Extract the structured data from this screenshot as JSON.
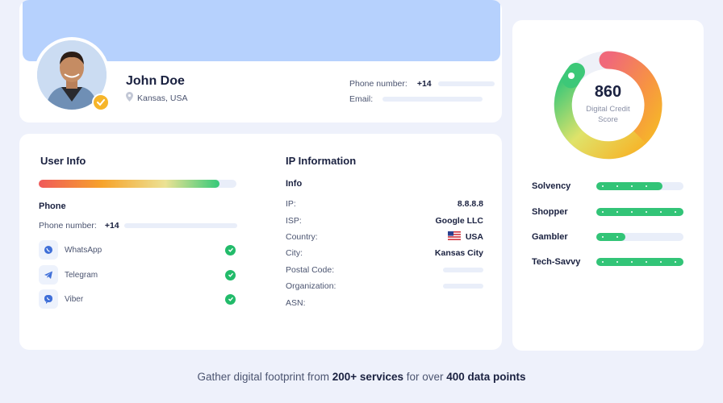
{
  "profile": {
    "name": "John Doe",
    "location": "Kansas, USA",
    "phone_label": "Phone number:",
    "phone_value": "+14",
    "email_label": "Email:"
  },
  "user_info": {
    "title": "User Info",
    "phone_title": "Phone",
    "phone_label": "Phone number:",
    "phone_value": "+14",
    "messengers": [
      {
        "name": "WhatsApp",
        "icon": "whatsapp-icon",
        "status": "check-icon"
      },
      {
        "name": "Telegram",
        "icon": "telegram-icon",
        "status": "check-icon"
      },
      {
        "name": "Viber",
        "icon": "viber-icon",
        "status": "check-icon"
      }
    ]
  },
  "ip_info": {
    "title": "IP Information",
    "subtitle": "Info",
    "rows": [
      {
        "label": "IP:",
        "value": "8.8.8.8"
      },
      {
        "label": "ISP:",
        "value": "Google LLC"
      },
      {
        "label": "Country:",
        "value": "USA",
        "icon": "us-flag-icon"
      },
      {
        "label": "City:",
        "value": "Kansas City"
      },
      {
        "label": "Postal Code:",
        "value": ""
      },
      {
        "label": "Organization:",
        "value": ""
      },
      {
        "label": "ASN:",
        "value": ""
      }
    ]
  },
  "score": {
    "value": "860",
    "label": "Digital Credit Score"
  },
  "traits": [
    {
      "name": "Solvency",
      "level": 0.76
    },
    {
      "name": "Shopper",
      "level": 1.0
    },
    {
      "name": "Gambler",
      "level": 0.33
    },
    {
      "name": "Tech-Savvy",
      "level": 1.0
    }
  ],
  "footer": {
    "prefix": "Gather digital footprint from ",
    "services": "200+ services",
    "middle": " for over ",
    "points": "400 data points"
  },
  "colors": {
    "accent_green": "#22bb6a",
    "banner_blue": "#b6d1fd",
    "badge_gold": "#f6b52a"
  }
}
